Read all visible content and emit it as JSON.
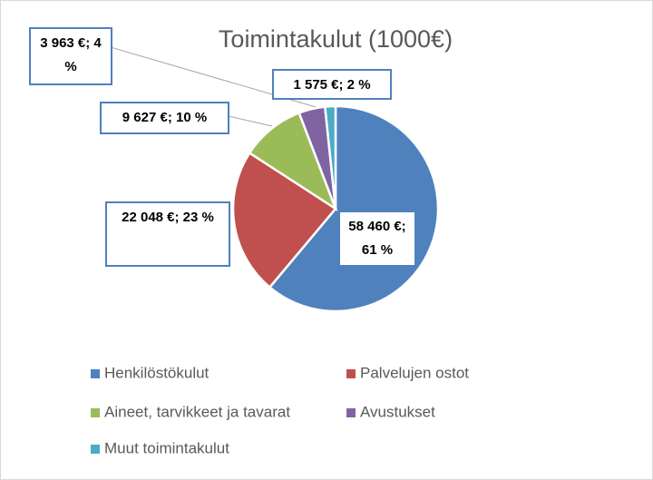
{
  "chart_data": {
    "type": "pie",
    "title": "Toimintakulut  (1000€)",
    "categories": [
      "Henkilöstökulut",
      "Palvelujen ostot",
      "Aineet, tarvikkeet ja tavarat",
      "Avustukset",
      "Muut toimintakulut"
    ],
    "values": [
      58460,
      22048,
      9627,
      3963,
      1575
    ],
    "value_labels": [
      "58 460 €; 61 %",
      "22 048 €; 23 %",
      "9 627 €; 10 %",
      "3 963 €; 4 %",
      "1 575 €; 2 %"
    ],
    "colors": [
      "#4f81bd",
      "#c0504d",
      "#9bbb59",
      "#8064a2",
      "#4bacc6"
    ],
    "legend": "bottom"
  }
}
